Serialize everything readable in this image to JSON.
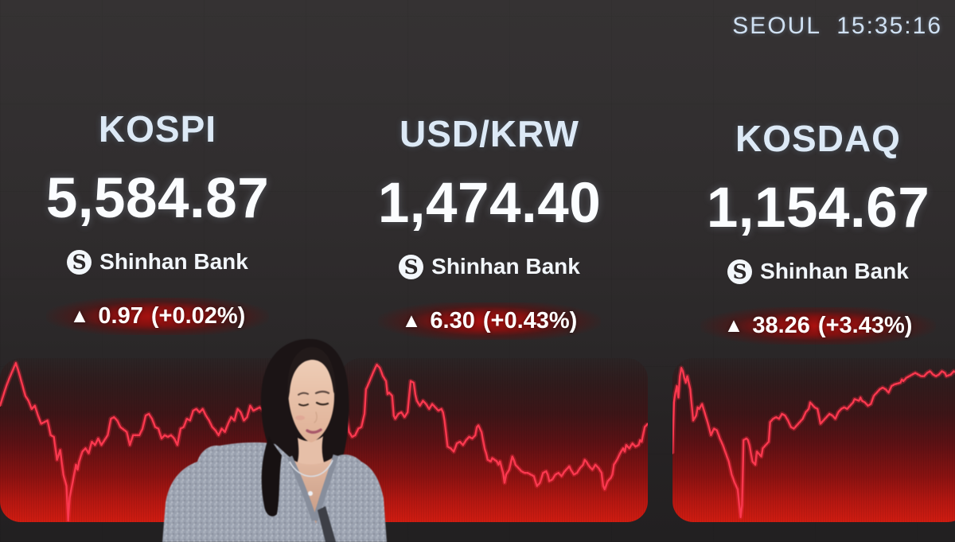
{
  "scene": {
    "description": "Electronic stock market display board in a dealing room showing Korean indices, with a currency dealer standing in front"
  },
  "clock": {
    "text": "SEOUL 15:35:16"
  },
  "brand": {
    "logo_letter": "S"
  },
  "tickers": [
    {
      "name": "KOSPI",
      "value": "5,584.87",
      "provider": "Shinhan Bank",
      "direction": "up",
      "arrow": "▲",
      "change": "0.97",
      "change_pct": "(+0.02%)"
    },
    {
      "name": "USD/KRW",
      "value": "1,474.40",
      "provider": "Shinhan Bank",
      "direction": "up",
      "arrow": "▲",
      "change": "6.30",
      "change_pct": "(+0.43%)"
    },
    {
      "name": "KOSDAQ",
      "value": "1,154.67",
      "provider": "Shinhan Bank",
      "direction": "up",
      "arrow": "▲",
      "change": "38.26",
      "change_pct": "(+3.43%)"
    }
  ],
  "colors": {
    "board_bg": "#2e2b2c",
    "title_text": "#dce9f6",
    "value_text": "#fbfdff",
    "clock_text": "#cfe0f2",
    "badge_glow": "#a80e0e",
    "panel_red": "#cf1c11",
    "chart_line": "#ff3950",
    "chart_glow": "#ff2840"
  },
  "chart_data": [
    {
      "type": "line",
      "name": "KOSPI intraday sparkline",
      "axes": "none",
      "line_color": "#ff3950",
      "glow_color": "#ff2840",
      "points": [
        [
          0,
          29
        ],
        [
          2,
          17
        ],
        [
          3,
          12
        ],
        [
          5,
          3
        ],
        [
          6,
          9
        ],
        [
          7,
          16
        ],
        [
          8,
          23
        ],
        [
          9,
          26
        ],
        [
          10,
          31
        ],
        [
          11,
          29
        ],
        [
          12,
          35
        ],
        [
          13,
          40
        ],
        [
          15,
          38
        ],
        [
          16,
          47
        ],
        [
          17,
          48
        ],
        [
          18,
          62
        ],
        [
          19,
          56
        ],
        [
          20,
          71
        ],
        [
          21,
          78
        ],
        [
          21.5,
          99
        ],
        [
          22,
          85
        ],
        [
          23,
          75
        ],
        [
          24,
          65
        ],
        [
          24.5,
          68
        ],
        [
          25,
          63
        ],
        [
          26,
          57
        ],
        [
          27,
          55
        ],
        [
          28,
          58
        ],
        [
          29,
          51
        ],
        [
          30,
          53
        ],
        [
          31,
          49
        ],
        [
          32,
          53
        ],
        [
          34,
          47
        ],
        [
          35,
          37
        ],
        [
          36,
          36
        ],
        [
          37,
          38
        ],
        [
          38,
          42
        ],
        [
          40,
          45
        ],
        [
          41,
          53
        ],
        [
          42,
          47
        ],
        [
          44,
          47
        ],
        [
          45,
          43
        ],
        [
          46,
          35
        ],
        [
          47,
          34
        ],
        [
          48,
          37
        ],
        [
          49,
          42
        ],
        [
          50,
          43
        ],
        [
          51,
          49
        ],
        [
          52,
          47
        ],
        [
          53,
          48
        ],
        [
          54,
          47
        ],
        [
          55,
          49
        ],
        [
          56,
          53
        ],
        [
          57,
          43
        ],
        [
          58,
          42
        ],
        [
          59,
          37
        ],
        [
          60,
          38
        ],
        [
          61,
          32
        ],
        [
          62,
          31
        ],
        [
          63,
          33
        ],
        [
          64,
          31
        ],
        [
          65,
          35
        ],
        [
          66,
          38
        ],
        [
          67,
          42
        ],
        [
          68,
          44
        ],
        [
          69,
          47
        ],
        [
          70,
          43
        ],
        [
          71,
          45
        ],
        [
          72,
          40
        ],
        [
          73,
          36
        ],
        [
          74,
          38
        ],
        [
          75,
          31
        ],
        [
          76,
          33
        ],
        [
          77,
          38
        ],
        [
          78,
          36
        ],
        [
          79,
          29
        ],
        [
          80,
          32
        ],
        [
          82,
          30
        ],
        [
          84,
          34
        ],
        [
          86,
          28
        ],
        [
          88,
          33
        ],
        [
          90,
          26
        ],
        [
          92,
          30
        ],
        [
          94,
          24
        ],
        [
          96,
          28
        ],
        [
          98,
          23
        ],
        [
          100,
          25
        ]
      ]
    },
    {
      "type": "line",
      "name": "USD/KRW intraday sparkline",
      "axes": "none",
      "line_color": "#ff3950",
      "glow_color": "#ff2840",
      "points": [
        [
          1,
          31
        ],
        [
          2,
          33
        ],
        [
          3,
          45
        ],
        [
          4,
          48
        ],
        [
          5,
          47
        ],
        [
          6,
          43
        ],
        [
          7,
          42
        ],
        [
          8,
          34
        ],
        [
          8.5,
          19
        ],
        [
          9,
          17
        ],
        [
          11,
          8
        ],
        [
          12,
          4
        ],
        [
          13,
          6
        ],
        [
          14,
          11
        ],
        [
          15,
          14
        ],
        [
          15.5,
          22
        ],
        [
          16,
          21
        ],
        [
          17,
          23
        ],
        [
          17.5,
          35
        ],
        [
          18,
          37
        ],
        [
          19,
          34
        ],
        [
          20,
          33
        ],
        [
          21,
          36
        ],
        [
          22,
          33
        ],
        [
          23,
          14
        ],
        [
          24,
          15
        ],
        [
          24.5,
          22
        ],
        [
          25,
          26
        ],
        [
          26,
          29
        ],
        [
          27,
          26
        ],
        [
          28,
          28
        ],
        [
          29,
          31
        ],
        [
          30,
          28
        ],
        [
          31,
          30
        ],
        [
          32,
          32
        ],
        [
          33,
          31
        ],
        [
          33.5,
          33
        ],
        [
          34,
          38
        ],
        [
          35,
          54
        ],
        [
          36,
          55
        ],
        [
          37,
          57
        ],
        [
          38,
          52
        ],
        [
          39,
          51
        ],
        [
          40,
          53
        ],
        [
          41,
          50
        ],
        [
          42,
          48
        ],
        [
          43,
          49
        ],
        [
          44,
          47
        ],
        [
          44.5,
          42
        ],
        [
          45,
          41
        ],
        [
          46,
          45
        ],
        [
          47,
          55
        ],
        [
          47.5,
          58
        ],
        [
          48,
          62
        ],
        [
          49,
          63
        ],
        [
          49.5,
          61
        ],
        [
          51,
          63
        ],
        [
          51.5,
          65
        ],
        [
          52,
          63
        ],
        [
          53,
          70
        ],
        [
          53.5,
          76
        ],
        [
          54,
          71
        ],
        [
          55,
          68
        ],
        [
          56,
          60
        ],
        [
          56.5,
          62
        ],
        [
          57,
          65
        ],
        [
          58,
          67
        ],
        [
          59,
          69
        ],
        [
          60,
          70
        ],
        [
          61,
          70
        ],
        [
          62,
          71
        ],
        [
          63,
          72
        ],
        [
          64,
          78
        ],
        [
          65,
          76
        ],
        [
          66,
          70
        ],
        [
          67,
          69
        ],
        [
          67.5,
          71
        ],
        [
          68,
          75
        ],
        [
          69,
          74
        ],
        [
          70,
          71
        ],
        [
          71,
          70
        ],
        [
          72,
          72
        ],
        [
          73,
          69
        ],
        [
          74,
          67
        ],
        [
          74.5,
          66
        ],
        [
          75,
          68
        ],
        [
          76,
          71
        ],
        [
          77,
          70
        ],
        [
          78,
          67
        ],
        [
          79,
          65
        ],
        [
          79.5,
          62
        ],
        [
          80,
          63
        ],
        [
          81,
          66
        ],
        [
          82,
          68
        ],
        [
          83,
          65
        ],
        [
          84,
          67
        ],
        [
          85,
          70
        ],
        [
          85.5,
          78
        ],
        [
          86,
          80
        ],
        [
          87,
          75
        ],
        [
          88,
          73
        ],
        [
          88.5,
          71
        ],
        [
          89,
          65
        ],
        [
          90,
          62
        ],
        [
          91,
          58
        ],
        [
          92,
          55
        ],
        [
          92.5,
          57
        ],
        [
          93,
          53
        ],
        [
          94,
          55
        ],
        [
          95,
          52
        ],
        [
          96,
          54
        ],
        [
          97,
          53
        ],
        [
          97.5,
          50
        ],
        [
          98,
          51
        ],
        [
          99,
          42
        ],
        [
          100,
          40
        ]
      ]
    },
    {
      "type": "line",
      "name": "KOSDAQ intraday sparkline",
      "axes": "none",
      "line_color": "#ff3950",
      "glow_color": "#ff2840",
      "points": [
        [
          0,
          58
        ],
        [
          0.5,
          27
        ],
        [
          1,
          21
        ],
        [
          1.5,
          17
        ],
        [
          2,
          24
        ],
        [
          2.5,
          11
        ],
        [
          3,
          6
        ],
        [
          3.5,
          8
        ],
        [
          4,
          12
        ],
        [
          4.5,
          15
        ],
        [
          5,
          11
        ],
        [
          6,
          19
        ],
        [
          7,
          38
        ],
        [
          8,
          35
        ],
        [
          8.5,
          30
        ],
        [
          9,
          31
        ],
        [
          10,
          28
        ],
        [
          11,
          34
        ],
        [
          12,
          40
        ],
        [
          13,
          47
        ],
        [
          14,
          43
        ],
        [
          15,
          44
        ],
        [
          16,
          49
        ],
        [
          17,
          53
        ],
        [
          18,
          58
        ],
        [
          19,
          63
        ],
        [
          20,
          71
        ],
        [
          21,
          76
        ],
        [
          22,
          80
        ],
        [
          23,
          97
        ],
        [
          23.5,
          90
        ],
        [
          24,
          50
        ],
        [
          25,
          49
        ],
        [
          25.5,
          50
        ],
        [
          26,
          53
        ],
        [
          27,
          63
        ],
        [
          28,
          65
        ],
        [
          28.5,
          57
        ],
        [
          29,
          58
        ],
        [
          30,
          60
        ],
        [
          30.5,
          55
        ],
        [
          32,
          52
        ],
        [
          32.5,
          51
        ],
        [
          33,
          39
        ],
        [
          34,
          37
        ],
        [
          35,
          36
        ],
        [
          36,
          37
        ],
        [
          37,
          34
        ],
        [
          38,
          35
        ],
        [
          39,
          38
        ],
        [
          40,
          42
        ],
        [
          41,
          43
        ],
        [
          42,
          41
        ],
        [
          43,
          39
        ],
        [
          44,
          37
        ],
        [
          45,
          33
        ],
        [
          46,
          31
        ],
        [
          46.5,
          27
        ],
        [
          47,
          28
        ],
        [
          48,
          30
        ],
        [
          49,
          31
        ],
        [
          50,
          40
        ],
        [
          51,
          38
        ],
        [
          52,
          36
        ],
        [
          53,
          34
        ],
        [
          54,
          35
        ],
        [
          55,
          37
        ],
        [
          56,
          33
        ],
        [
          57,
          31
        ],
        [
          58,
          30
        ],
        [
          59,
          31
        ],
        [
          60,
          29
        ],
        [
          61,
          27
        ],
        [
          61.5,
          25
        ],
        [
          63,
          26
        ],
        [
          63.5,
          24
        ],
        [
          64,
          26
        ],
        [
          65,
          27
        ],
        [
          66,
          29
        ],
        [
          67,
          28
        ],
        [
          68,
          23
        ],
        [
          69,
          21
        ],
        [
          70,
          19
        ],
        [
          71,
          18
        ],
        [
          72,
          19
        ],
        [
          73,
          21
        ],
        [
          74,
          17
        ],
        [
          75,
          16
        ],
        [
          77,
          15
        ],
        [
          77.5,
          13
        ],
        [
          78,
          14
        ],
        [
          79,
          12
        ],
        [
          80,
          11
        ],
        [
          81,
          10
        ],
        [
          82,
          9
        ],
        [
          83,
          10
        ],
        [
          84,
          11
        ],
        [
          85,
          11
        ],
        [
          86,
          9
        ],
        [
          87,
          8
        ],
        [
          88,
          10
        ],
        [
          89,
          11
        ],
        [
          90,
          10
        ],
        [
          91,
          8
        ],
        [
          92,
          9
        ],
        [
          92.5,
          11
        ],
        [
          94,
          10
        ],
        [
          94.5,
          9
        ],
        [
          95,
          8
        ],
        [
          96,
          9
        ],
        [
          97,
          8
        ],
        [
          98,
          7
        ],
        [
          99,
          8
        ],
        [
          100,
          9
        ]
      ]
    }
  ]
}
